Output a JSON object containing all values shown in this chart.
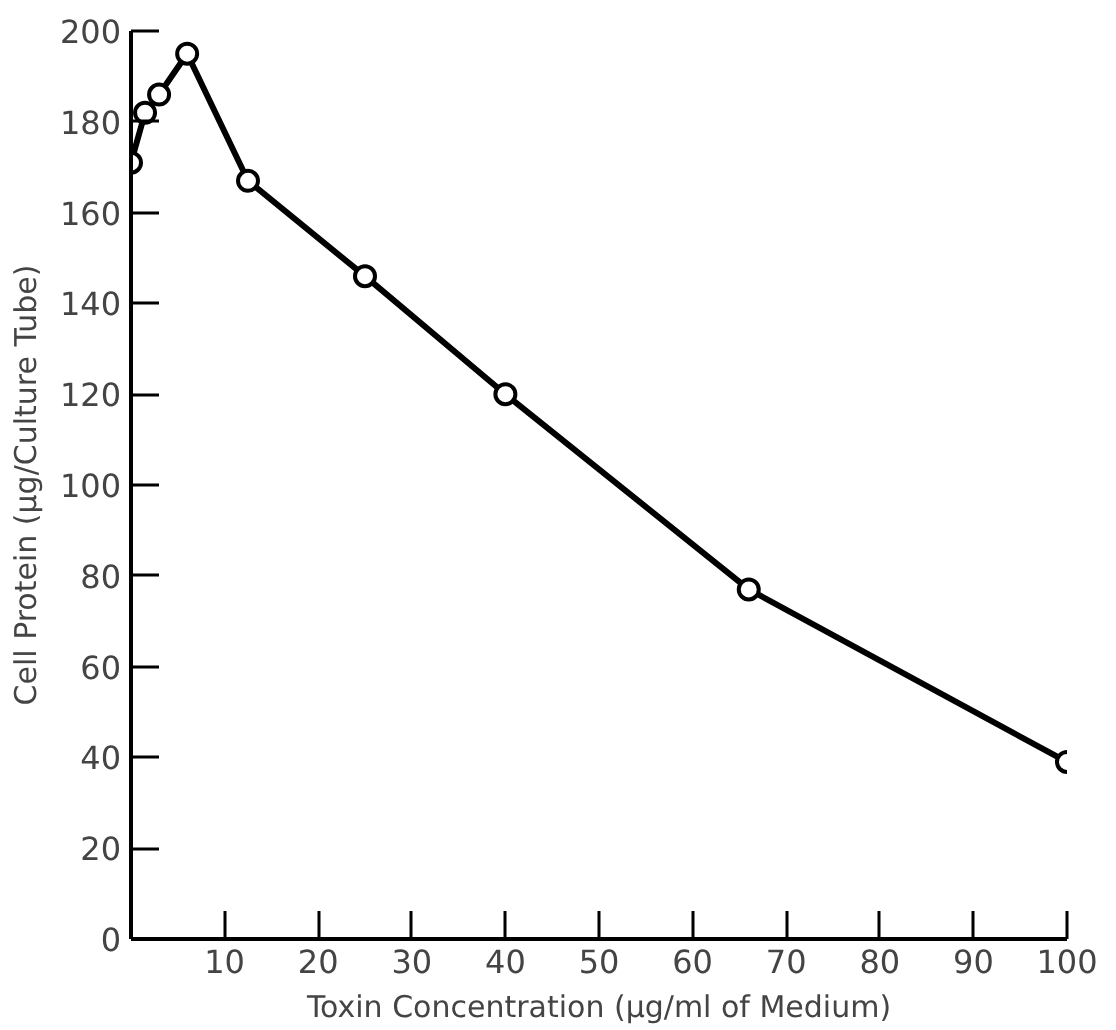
{
  "chart_data": {
    "type": "line",
    "xlabel": "Toxin Concentration (μg/ml of Medium)",
    "ylabel": "Cell Protein (μg/Culture Tube)",
    "x": [
      0,
      1.5,
      3,
      6,
      12.5,
      25,
      40,
      66,
      100
    ],
    "series": [
      {
        "color": "#000000",
        "values": [
          171,
          182,
          186,
          195,
          167,
          146,
          120,
          77,
          39
        ]
      }
    ],
    "xlim": [
      0,
      100
    ],
    "xticks": [
      10,
      20,
      30,
      40,
      50,
      60,
      70,
      80,
      90,
      100
    ],
    "ylim": [
      0,
      200
    ],
    "yticks": [
      0,
      20,
      40,
      60,
      80,
      100,
      120,
      140,
      160,
      180,
      200
    ],
    "grid": false,
    "marker": "circle",
    "line_style": "solid"
  }
}
